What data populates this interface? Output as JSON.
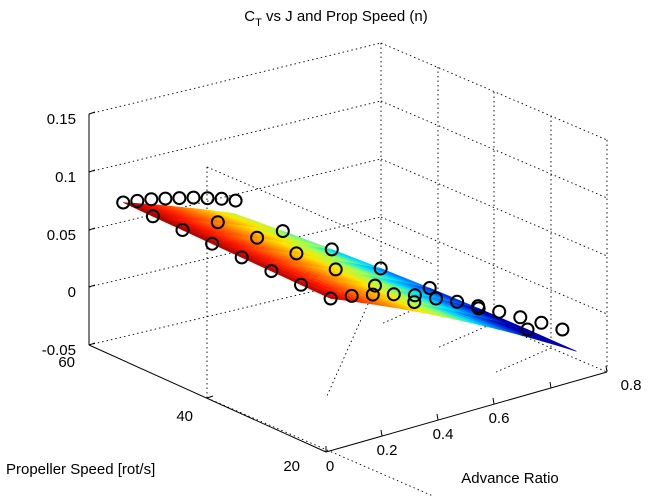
{
  "chart_data": {
    "type": "scatter3d-surface",
    "title": {
      "main": "C",
      "sub": "T",
      "rest": " vs J and Prop Speed (n)"
    },
    "xlabel": "Advance Ratio",
    "ylabel": "Propeller Speed [rot/s]",
    "zlabel": "",
    "xlim": [
      0,
      0.8
    ],
    "ylim": [
      20,
      60
    ],
    "zlim": [
      -0.05,
      0.15
    ],
    "x_ticks": [
      "0",
      "0.2",
      "0.4",
      "0.6",
      "0.8"
    ],
    "y_ticks": [
      "20",
      "40",
      "60"
    ],
    "z_ticks": [
      "-0.05",
      "0",
      "0.05",
      "0.1",
      "0.15"
    ],
    "grid": true,
    "colormap": "jet",
    "series": [
      {
        "marker": "open-circle",
        "surface": "colored",
        "n_values": [
          21,
          26,
          31,
          36,
          41,
          46,
          51,
          56
        ],
        "points": [
          {
            "J": 0.03,
            "n": 21,
            "CT": 0.078
          },
          {
            "J": 0.09,
            "n": 21,
            "CT": 0.075
          },
          {
            "J": 0.15,
            "n": 21,
            "CT": 0.071
          },
          {
            "J": 0.21,
            "n": 21,
            "CT": 0.066
          },
          {
            "J": 0.27,
            "n": 21,
            "CT": 0.06
          },
          {
            "J": 0.33,
            "n": 21,
            "CT": 0.052
          },
          {
            "J": 0.39,
            "n": 21,
            "CT": 0.044
          },
          {
            "J": 0.45,
            "n": 21,
            "CT": 0.035
          },
          {
            "J": 0.51,
            "n": 21,
            "CT": 0.025
          },
          {
            "J": 0.57,
            "n": 21,
            "CT": 0.015
          },
          {
            "J": 0.63,
            "n": 21,
            "CT": 0.005
          },
          {
            "J": 0.69,
            "n": 21,
            "CT": -0.006
          },
          {
            "J": 0.03,
            "n": 56,
            "CT": 0.08
          },
          {
            "J": 0.07,
            "n": 56,
            "CT": 0.078
          },
          {
            "J": 0.11,
            "n": 56,
            "CT": 0.076
          },
          {
            "J": 0.15,
            "n": 56,
            "CT": 0.073
          },
          {
            "J": 0.19,
            "n": 56,
            "CT": 0.07
          },
          {
            "J": 0.23,
            "n": 56,
            "CT": 0.067
          },
          {
            "J": 0.27,
            "n": 56,
            "CT": 0.063
          },
          {
            "J": 0.31,
            "n": 56,
            "CT": 0.059
          },
          {
            "J": 0.35,
            "n": 56,
            "CT": 0.054
          }
        ]
      }
    ]
  }
}
